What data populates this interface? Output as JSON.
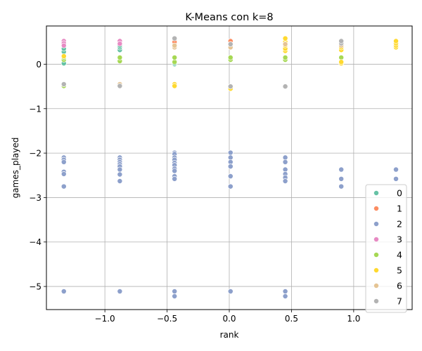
{
  "chart_data": {
    "type": "scatter",
    "title": "K-Means con k=8",
    "xlabel": "rank",
    "ylabel": "games_played",
    "xlim": [
      -1.47,
      1.47
    ],
    "ylim": [
      -5.52,
      0.86
    ],
    "xticks": [
      {
        "value": -1.0,
        "label": "−1.0"
      },
      {
        "value": -0.5,
        "label": "−0.5"
      },
      {
        "value": 0.0,
        "label": "0.0"
      },
      {
        "value": 0.5,
        "label": "0.5"
      },
      {
        "value": 1.0,
        "label": "1.0"
      }
    ],
    "yticks": [
      {
        "value": 0,
        "label": "0"
      },
      {
        "value": -1,
        "label": "−1"
      },
      {
        "value": -2,
        "label": "−2"
      },
      {
        "value": -3,
        "label": "−3"
      },
      {
        "value": -4,
        "label": "−4"
      },
      {
        "value": -5,
        "label": "−5"
      }
    ],
    "grid": true,
    "legend_position": "lower-right",
    "series": [
      {
        "name": "0",
        "color": "#66c2a5",
        "points": [
          [
            -1.33,
            0.02
          ],
          [
            -1.33,
            0.28
          ],
          [
            -1.33,
            0.35
          ],
          [
            -0.88,
            0.32
          ],
          [
            -0.88,
            0.38
          ],
          [
            -0.88,
            0.42
          ],
          [
            -0.44,
            0.0
          ],
          [
            -0.44,
            0.02
          ],
          [
            -0.44,
            0.48
          ],
          [
            -0.44,
            0.55
          ],
          [
            0.01,
            0.42
          ],
          [
            0.45,
            0.38
          ]
        ]
      },
      {
        "name": "1",
        "color": "#fc8d62",
        "points": [
          [
            -0.44,
            0.45
          ],
          [
            -0.44,
            0.5
          ],
          [
            0.01,
            0.5
          ],
          [
            0.01,
            0.52
          ],
          [
            0.45,
            0.42
          ],
          [
            0.45,
            0.48
          ],
          [
            0.45,
            0.52
          ]
        ]
      },
      {
        "name": "2",
        "color": "#8da0cb",
        "points": [
          [
            -1.33,
            -2.1
          ],
          [
            -1.33,
            -2.15
          ],
          [
            -1.33,
            -2.2
          ],
          [
            -1.33,
            -2.42
          ],
          [
            -1.33,
            -2.47
          ],
          [
            -1.33,
            -2.75
          ],
          [
            -1.33,
            -5.11
          ],
          [
            -0.88,
            -2.1
          ],
          [
            -0.88,
            -2.15
          ],
          [
            -0.88,
            -2.2
          ],
          [
            -0.88,
            -2.25
          ],
          [
            -0.88,
            -2.3
          ],
          [
            -0.88,
            -2.37
          ],
          [
            -0.88,
            -2.48
          ],
          [
            -0.88,
            -2.63
          ],
          [
            -0.88,
            -5.11
          ],
          [
            -0.44,
            -1.99
          ],
          [
            -0.44,
            -2.02
          ],
          [
            -0.44,
            -2.1
          ],
          [
            -0.44,
            -2.15
          ],
          [
            -0.44,
            -2.22
          ],
          [
            -0.44,
            -2.27
          ],
          [
            -0.44,
            -2.35
          ],
          [
            -0.44,
            -2.4
          ],
          [
            -0.44,
            -2.52
          ],
          [
            -0.44,
            -2.58
          ],
          [
            -0.44,
            -5.11
          ],
          [
            -0.44,
            -5.22
          ],
          [
            0.01,
            -1.99
          ],
          [
            0.01,
            -2.1
          ],
          [
            0.01,
            -2.2
          ],
          [
            0.01,
            -2.3
          ],
          [
            0.01,
            -2.52
          ],
          [
            0.01,
            -2.75
          ],
          [
            0.01,
            -5.11
          ],
          [
            0.45,
            -2.1
          ],
          [
            0.45,
            -2.2
          ],
          [
            0.45,
            -2.37
          ],
          [
            0.45,
            -2.47
          ],
          [
            0.45,
            -2.55
          ],
          [
            0.45,
            -2.63
          ],
          [
            0.45,
            -5.11
          ],
          [
            0.45,
            -5.22
          ],
          [
            0.9,
            -2.37
          ],
          [
            0.9,
            -2.58
          ],
          [
            0.9,
            -2.75
          ],
          [
            1.34,
            -2.37
          ],
          [
            1.34,
            -2.58
          ]
        ]
      },
      {
        "name": "3",
        "color": "#e78ac3",
        "points": [
          [
            -1.33,
            0.52
          ],
          [
            -1.33,
            0.47
          ],
          [
            -1.33,
            0.42
          ],
          [
            -0.88,
            0.52
          ],
          [
            -0.88,
            0.46
          ]
        ]
      },
      {
        "name": "4",
        "color": "#a6d854",
        "points": [
          [
            -1.33,
            0.1
          ],
          [
            -1.33,
            0.15
          ],
          [
            -1.33,
            -0.49
          ],
          [
            -0.88,
            0.07
          ],
          [
            -0.88,
            0.15
          ],
          [
            -0.44,
            0.05
          ],
          [
            -0.44,
            0.15
          ],
          [
            0.01,
            0.1
          ],
          [
            0.01,
            0.15
          ],
          [
            0.45,
            0.1
          ],
          [
            0.45,
            0.15
          ],
          [
            0.9,
            0.15
          ]
        ]
      },
      {
        "name": "5",
        "color": "#ffd92f",
        "points": [
          [
            -1.33,
            0.18
          ],
          [
            -0.44,
            -0.45
          ],
          [
            -0.44,
            -0.49
          ],
          [
            0.01,
            -0.52
          ],
          [
            0.01,
            -0.55
          ],
          [
            0.45,
            0.3
          ],
          [
            0.45,
            0.35
          ],
          [
            0.45,
            0.42
          ],
          [
            0.45,
            0.5
          ],
          [
            0.45,
            0.58
          ],
          [
            0.9,
            0.02
          ],
          [
            0.9,
            0.05
          ],
          [
            0.9,
            0.32
          ],
          [
            0.9,
            0.38
          ],
          [
            1.34,
            0.38
          ],
          [
            1.34,
            0.42
          ],
          [
            1.34,
            0.47
          ],
          [
            1.34,
            0.52
          ]
        ]
      },
      {
        "name": "6",
        "color": "#e5c494",
        "points": [
          [
            -1.33,
            -0.45
          ],
          [
            -0.88,
            -0.45
          ],
          [
            -0.44,
            0.38
          ],
          [
            -0.44,
            0.42
          ],
          [
            0.01,
            0.38
          ],
          [
            0.45,
            0.45
          ],
          [
            0.9,
            0.42
          ],
          [
            0.9,
            0.52
          ]
        ]
      },
      {
        "name": "7",
        "color": "#b3b3b3",
        "points": [
          [
            -1.33,
            -0.45
          ],
          [
            -0.88,
            -0.49
          ],
          [
            -0.44,
            0.58
          ],
          [
            0.01,
            -0.5
          ],
          [
            0.01,
            0.45
          ],
          [
            0.45,
            -0.5
          ],
          [
            0.9,
            0.47
          ],
          [
            0.9,
            0.52
          ]
        ]
      }
    ]
  }
}
